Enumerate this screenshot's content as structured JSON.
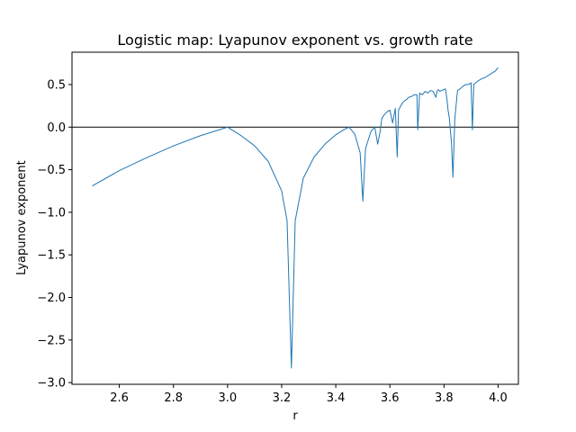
{
  "chart_data": {
    "type": "line",
    "title": "Logistic map: Lyapunov exponent vs. growth rate",
    "xlabel": "r",
    "ylabel": "Lyapunov exponent",
    "xlim": [
      2.425,
      4.075
    ],
    "ylim": [
      -3.02,
      0.88
    ],
    "grid": false,
    "series_color": "#1f77b4",
    "reference_line": {
      "y": 0.0,
      "color": "#000000"
    },
    "x_ticks": [
      2.6,
      2.8,
      3.0,
      3.2,
      3.4,
      3.6,
      3.8,
      4.0
    ],
    "x_tick_labels": [
      "2.6",
      "2.8",
      "3.0",
      "3.2",
      "3.4",
      "3.6",
      "3.8",
      "4.0"
    ],
    "y_ticks": [
      0.5,
      0.0,
      -0.5,
      -1.0,
      -1.5,
      -2.0,
      -2.5,
      -3.0
    ],
    "y_tick_labels": [
      "0.5",
      "0.0",
      "−0.5",
      "−1.0",
      "−1.5",
      "−2.0",
      "−2.5",
      "−3.0"
    ],
    "series": [
      {
        "x": [
          2.5,
          2.6,
          2.7,
          2.8,
          2.9,
          2.95,
          3.0,
          3.05,
          3.1,
          3.15,
          3.2,
          3.22,
          3.236,
          3.25,
          3.28,
          3.32,
          3.36,
          3.4,
          3.43,
          3.449,
          3.47,
          3.49,
          3.5,
          3.51,
          3.53,
          3.544,
          3.555,
          3.564,
          3.57,
          3.58,
          3.59,
          3.6,
          3.61,
          3.62,
          3.627,
          3.632,
          3.64,
          3.65,
          3.66,
          3.67,
          3.68,
          3.69,
          3.7,
          3.703,
          3.71,
          3.72,
          3.73,
          3.74,
          3.75,
          3.76,
          3.77,
          3.775,
          3.78,
          3.785,
          3.79,
          3.8,
          3.805,
          3.81,
          3.815,
          3.82,
          3.828,
          3.833,
          3.84,
          3.85,
          3.86,
          3.87,
          3.88,
          3.89,
          3.9,
          3.905,
          3.91,
          3.92,
          3.93,
          3.94,
          3.95,
          3.96,
          3.97,
          3.98,
          3.99,
          4.0
        ],
        "y": [
          -0.69,
          -0.51,
          -0.36,
          -0.22,
          -0.1,
          -0.05,
          0.0,
          -0.1,
          -0.22,
          -0.4,
          -0.75,
          -1.1,
          -2.83,
          -1.1,
          -0.6,
          -0.35,
          -0.2,
          -0.09,
          -0.03,
          0.0,
          -0.08,
          -0.3,
          -0.87,
          -0.25,
          -0.05,
          0.0,
          -0.2,
          -0.05,
          0.1,
          0.15,
          0.18,
          0.2,
          0.05,
          0.22,
          -0.35,
          0.2,
          0.25,
          0.3,
          0.32,
          0.35,
          0.36,
          0.38,
          0.38,
          -0.03,
          0.4,
          0.38,
          0.42,
          0.4,
          0.43,
          0.42,
          0.35,
          0.43,
          0.44,
          0.42,
          0.43,
          0.44,
          0.45,
          0.35,
          0.2,
          0.1,
          -0.2,
          -0.59,
          0.1,
          0.43,
          0.45,
          0.48,
          0.5,
          0.5,
          0.52,
          -0.03,
          0.5,
          0.53,
          0.55,
          0.57,
          0.58,
          0.6,
          0.62,
          0.64,
          0.66,
          0.7
        ]
      }
    ]
  }
}
